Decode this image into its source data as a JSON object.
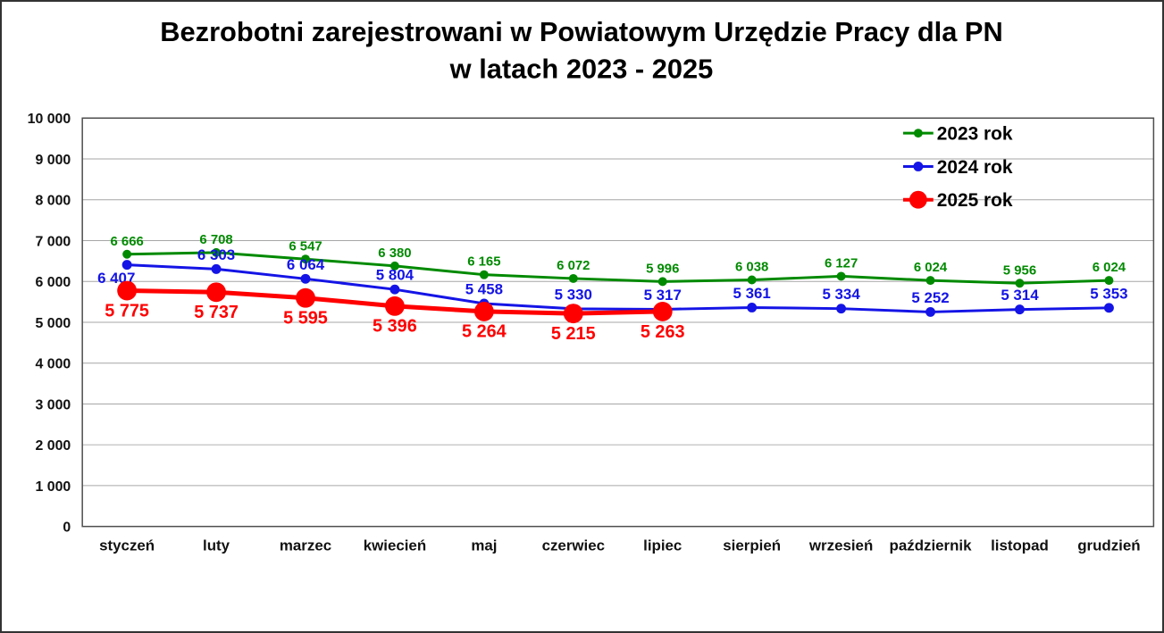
{
  "title": {
    "line1": "Bezrobotni zarejestrowani w Powiatowym Urzędzie Pracy dla PN",
    "line2": "w latach 2023 - 2025"
  },
  "chart_data": {
    "type": "line",
    "categories": [
      "styczeń",
      "luty",
      "marzec",
      "kwiecień",
      "maj",
      "czerwiec",
      "lipiec",
      "sierpień",
      "wrzesień",
      "październik",
      "listopad",
      "grudzień"
    ],
    "series": [
      {
        "name": "2023 rok",
        "color": "#008A00",
        "values": [
          6666,
          6708,
          6547,
          6380,
          6165,
          6072,
          5996,
          6038,
          6127,
          6024,
          5956,
          6024
        ],
        "marker_radius": 5,
        "line_width": 3,
        "label_font_size": 15,
        "label_position": "above",
        "label_exceptions": {}
      },
      {
        "name": "2024 rok",
        "color": "#1414E6",
        "values": [
          6407,
          6303,
          6064,
          5804,
          5458,
          5330,
          5317,
          5361,
          5334,
          5252,
          5314,
          5353
        ],
        "marker_radius": 5.5,
        "line_width": 3,
        "label_font_size": 17,
        "label_position": "above",
        "label_exceptions": {
          "0": "below-left"
        }
      },
      {
        "name": "2025 rok",
        "color": "#FF0000",
        "values": [
          5775,
          5737,
          5595,
          5396,
          5264,
          5215,
          5263
        ],
        "marker_radius": 11,
        "line_width": 5,
        "label_font_size": 20,
        "label_position": "below",
        "label_exceptions": {}
      }
    ],
    "ylim": [
      0,
      10000
    ],
    "ytick_step": 1000,
    "grid": true,
    "gridline_color": "#A6A6A6",
    "axis_border_color": "#4D4D4D",
    "legend_position": "top-right",
    "legend_labels": [
      "2023 rok",
      "2024 rok",
      "2025 rok"
    ],
    "number_format": "space-thousands"
  }
}
